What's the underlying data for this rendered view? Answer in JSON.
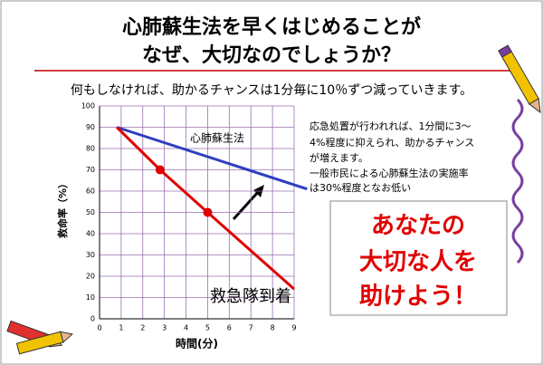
{
  "title": [
    "心肺蘇生法を早くはじめることが",
    "なぜ、大切なのでしょうか？"
  ],
  "subtitle": "何もしなければ、助かるチャンスは1分毎に10％ずつ減っていきます。",
  "note": [
    "応急処置が行われれば、1分間に3～",
    "4%程度に抑えられ、助かるチャンス",
    "が増えます。",
    "一般市民による心肺蘇生法の実施率",
    "は30%程度となお低い"
  ],
  "callout": [
    "あなたの",
    "大切な人を",
    "助けよう！"
  ],
  "chart_data": {
    "type": "line",
    "x_label": "時間(分)",
    "y_label": "救命率（%）",
    "xlim": [
      0,
      9
    ],
    "ylim": [
      0,
      100
    ],
    "xticks": [
      0,
      1,
      2,
      3,
      4,
      5,
      6,
      7,
      8,
      9
    ],
    "yticks": [
      0,
      10,
      20,
      30,
      40,
      50,
      60,
      70,
      80,
      90,
      100
    ],
    "grid": true,
    "series": [
      {
        "name": "心肺蘇生法",
        "color": "#2f3fbf",
        "mode": "line",
        "x": [
          0.8,
          9.6
        ],
        "values": [
          90,
          61
        ]
      },
      {
        "color": "#e00000",
        "mode": "line",
        "x": [
          0.8,
          2.8,
          5,
          9
        ],
        "values": [
          90,
          70,
          50,
          14
        ]
      },
      {
        "color": "#e00000",
        "mode": "markers",
        "x": [
          2.8,
          5
        ],
        "values": [
          70,
          50
        ]
      }
    ],
    "annotations": [
      "救急隊到着"
    ]
  }
}
